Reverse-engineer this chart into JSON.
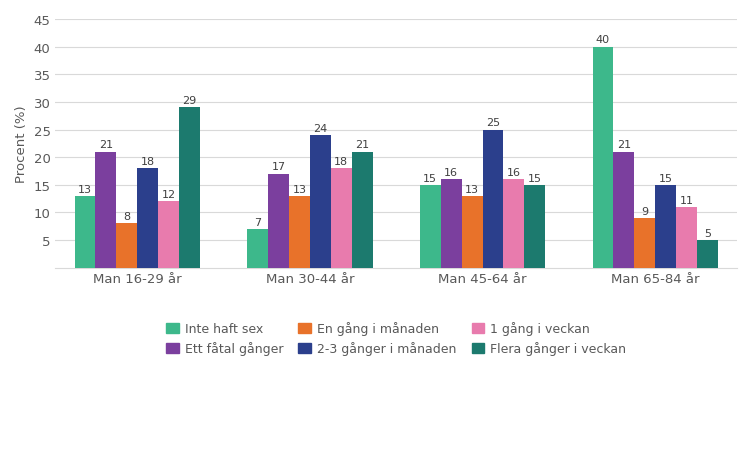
{
  "categories": [
    "Man 16-29 år",
    "Man 30-44 år",
    "Man 45-64 år",
    "Man 65-84 år"
  ],
  "series": [
    {
      "label": "Inte haft sex",
      "color": "#3DB88B",
      "values": [
        13,
        7,
        15,
        40
      ]
    },
    {
      "label": "Ett fåtal gånger",
      "color": "#7B3F9E",
      "values": [
        21,
        17,
        16,
        21
      ]
    },
    {
      "label": "En gång i månaden",
      "color": "#E8722A",
      "values": [
        8,
        13,
        13,
        9
      ]
    },
    {
      "label": "2-3 gånger i månaden",
      "color": "#2B3F8C",
      "values": [
        18,
        24,
        25,
        15
      ]
    },
    {
      "label": "1 gång i veckan",
      "color": "#E87BAD",
      "values": [
        12,
        18,
        16,
        11
      ]
    },
    {
      "label": "Flera gånger i veckan",
      "color": "#1C7A6E",
      "values": [
        29,
        21,
        15,
        5
      ]
    }
  ],
  "ylabel": "Procent (%)",
  "ylim": [
    0,
    45
  ],
  "yticks": [
    5,
    10,
    15,
    20,
    25,
    30,
    35,
    40,
    45
  ],
  "bar_width": 0.115,
  "background_color": "#ffffff",
  "grid_color": "#d9d9d9",
  "label_fontsize": 8,
  "axis_fontsize": 9.5,
  "legend_fontsize": 9,
  "tick_label_color": "#595959",
  "value_label_color": "#404040"
}
